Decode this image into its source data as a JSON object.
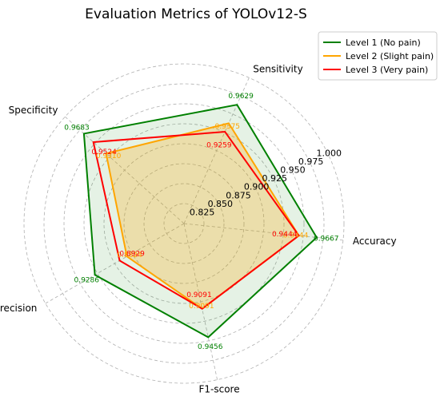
{
  "chart_data": {
    "type": "radar",
    "title": "Evaluation Metrics of YOLOv12-S",
    "axes": [
      "Accuracy",
      "Sensitivity",
      "Specificity",
      "Precision",
      "F1-score"
    ],
    "rlim": [
      0.8,
      1.0
    ],
    "ticks": [
      "0.825",
      "0.850",
      "0.875",
      "0.900",
      "0.925",
      "0.950",
      "0.975",
      "1.000"
    ],
    "grid": true,
    "legend_position": "top-right",
    "series": [
      {
        "name": "Level 1 (No pain)",
        "color": "#008000",
        "fill": "#008000",
        "values": [
          0.9667,
          0.9629,
          0.9683,
          0.9286,
          0.9456
        ],
        "labels": [
          "0.9667",
          "0.9629",
          "0.9683",
          "0.9286",
          "0.9456"
        ]
      },
      {
        "name": "Level 2 (Slight pain)",
        "color": "#FFA500",
        "fill": "#FFA500",
        "values": [
          0.9444,
          0.9375,
          0.931,
          0.8824,
          0.9091
        ],
        "labels": [
          "0.9444",
          "0.9375",
          "0.9310",
          "0.8824",
          "0.9091"
        ]
      },
      {
        "name": "Level 3 (Very pain)",
        "color": "#FF0000",
        "fill": null,
        "values": [
          0.9444,
          0.9259,
          0.9524,
          0.8929,
          0.9091
        ],
        "labels": [
          "0.9444",
          "0.9259",
          "0.9524",
          "0.8929",
          "0.9091"
        ]
      }
    ]
  }
}
